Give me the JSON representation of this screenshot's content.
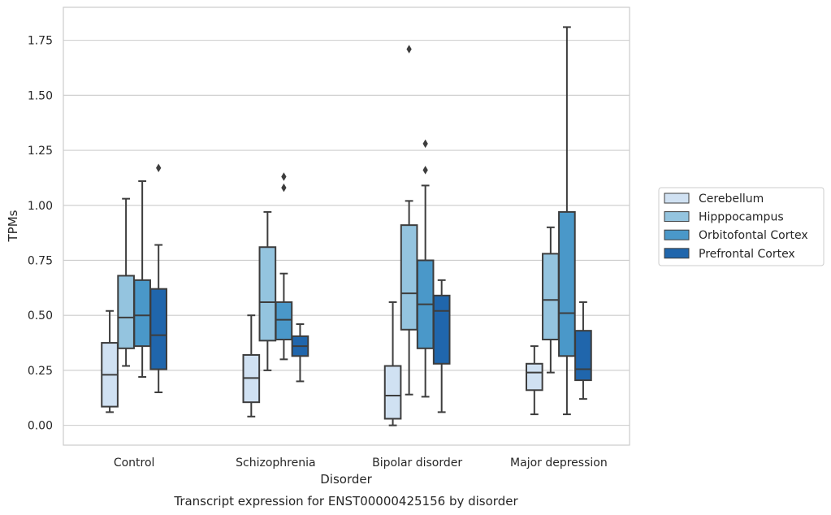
{
  "chart_data": {
    "type": "box",
    "title": "",
    "caption": "Transcript expression for ENST00000425156 by disorder",
    "xlabel": "Disorder",
    "ylabel": "TPMs",
    "ylim": [
      -0.09,
      1.9
    ],
    "yticks": [
      "0.00",
      "0.25",
      "0.50",
      "0.75",
      "1.00",
      "1.25",
      "1.50",
      "1.75"
    ],
    "ytick_values": [
      0,
      0.25,
      0.5,
      0.75,
      1.0,
      1.25,
      1.5,
      1.75
    ],
    "grid": "horizontal",
    "legend_position": "right",
    "categories": [
      "Control",
      "Schizophrenia",
      "Bipolar disorder",
      "Major depression"
    ],
    "series": [
      {
        "name": "Cerebellum",
        "color": "#d0e1f2",
        "boxes": [
          {
            "whisker_low": 0.06,
            "q1": 0.085,
            "median": 0.23,
            "q3": 0.375,
            "whisker_high": 0.52,
            "outliers": []
          },
          {
            "whisker_low": 0.04,
            "q1": 0.105,
            "median": 0.215,
            "q3": 0.32,
            "whisker_high": 0.5,
            "outliers": []
          },
          {
            "whisker_low": 0.0,
            "q1": 0.03,
            "median": 0.135,
            "q3": 0.27,
            "whisker_high": 0.56,
            "outliers": []
          },
          {
            "whisker_low": 0.05,
            "q1": 0.16,
            "median": 0.24,
            "q3": 0.28,
            "whisker_high": 0.36,
            "outliers": []
          }
        ]
      },
      {
        "name": "Hipppocampus",
        "color": "#94c4df",
        "boxes": [
          {
            "whisker_low": 0.27,
            "q1": 0.35,
            "median": 0.49,
            "q3": 0.68,
            "whisker_high": 1.03,
            "outliers": []
          },
          {
            "whisker_low": 0.25,
            "q1": 0.385,
            "median": 0.56,
            "q3": 0.81,
            "whisker_high": 0.97,
            "outliers": []
          },
          {
            "whisker_low": 0.14,
            "q1": 0.435,
            "median": 0.6,
            "q3": 0.91,
            "whisker_high": 1.02,
            "outliers": [
              1.71
            ]
          },
          {
            "whisker_low": 0.24,
            "q1": 0.39,
            "median": 0.57,
            "q3": 0.78,
            "whisker_high": 0.9,
            "outliers": []
          }
        ]
      },
      {
        "name": "Orbitofontal Cortex",
        "color": "#4a98c9",
        "boxes": [
          {
            "whisker_low": 0.22,
            "q1": 0.36,
            "median": 0.5,
            "q3": 0.66,
            "whisker_high": 1.11,
            "outliers": []
          },
          {
            "whisker_low": 0.3,
            "q1": 0.39,
            "median": 0.48,
            "q3": 0.56,
            "whisker_high": 0.69,
            "outliers": [
              1.08,
              1.13
            ]
          },
          {
            "whisker_low": 0.13,
            "q1": 0.35,
            "median": 0.55,
            "q3": 0.75,
            "whisker_high": 1.09,
            "outliers": [
              1.16,
              1.28
            ]
          },
          {
            "whisker_low": 0.05,
            "q1": 0.315,
            "median": 0.51,
            "q3": 0.97,
            "whisker_high": 1.81,
            "outliers": []
          }
        ]
      },
      {
        "name": "Prefrontal Cortex",
        "color": "#2066ac",
        "boxes": [
          {
            "whisker_low": 0.15,
            "q1": 0.255,
            "median": 0.41,
            "q3": 0.62,
            "whisker_high": 0.82,
            "outliers": [
              1.17
            ]
          },
          {
            "whisker_low": 0.2,
            "q1": 0.315,
            "median": 0.36,
            "q3": 0.405,
            "whisker_high": 0.46,
            "outliers": []
          },
          {
            "whisker_low": 0.06,
            "q1": 0.28,
            "median": 0.52,
            "q3": 0.59,
            "whisker_high": 0.66,
            "outliers": []
          },
          {
            "whisker_low": 0.12,
            "q1": 0.205,
            "median": 0.255,
            "q3": 0.43,
            "whisker_high": 0.56,
            "outliers": []
          }
        ]
      }
    ],
    "colors": {
      "grid": "#cccccc",
      "frame": "#cccccc",
      "line": "#3d3d3d"
    }
  }
}
